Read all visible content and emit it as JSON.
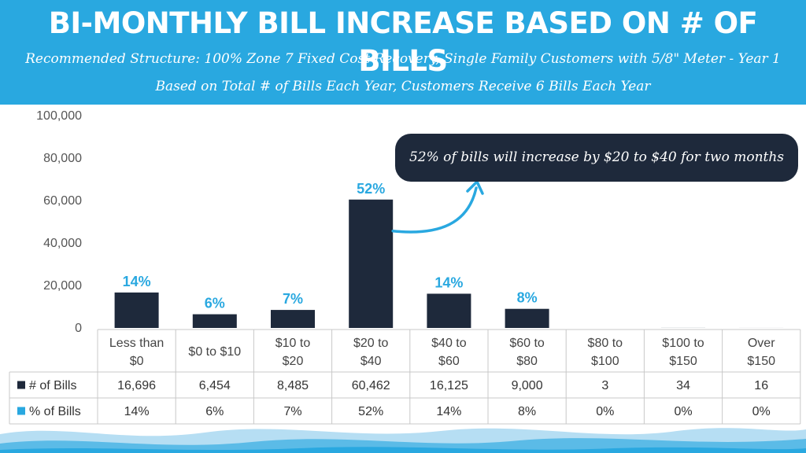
{
  "header": {
    "title": "BI-MONTHLY BILL INCREASE BASED ON # OF BILLS",
    "subtitle1": "Recommended Structure: 100% Zone 7 Fixed Cost Recovery, Single Family Customers with 5/8\" Meter - Year 1",
    "subtitle2": "Based on Total # of Bills Each Year, Customers Receive 6 Bills Each Year"
  },
  "callout": {
    "text": "52% of bills will increase by $20 to $40 for two months"
  },
  "colors": {
    "header": "#29a8e0",
    "bar": "#1e293b",
    "pct_label": "#29a8e0",
    "callout_bg": "#1e293b"
  },
  "chart_data": {
    "type": "bar",
    "ylim": [
      0,
      100000
    ],
    "yticks": [
      "100,000",
      "80,000",
      "60,000",
      "40,000",
      "20,000",
      "0"
    ],
    "categories": [
      [
        "Less than",
        "$0"
      ],
      [
        "$0 to $10"
      ],
      [
        "$10 to",
        "$20"
      ],
      [
        "$20 to",
        "$40"
      ],
      [
        "$40 to",
        "$60"
      ],
      [
        "$60 to",
        "$80"
      ],
      [
        "$80 to",
        "$100"
      ],
      [
        "$100 to",
        "$150"
      ],
      [
        "Over",
        "$150"
      ]
    ],
    "series": [
      {
        "name": "# of Bills",
        "values": [
          16696,
          6454,
          8485,
          60462,
          16125,
          9000,
          3,
          34,
          16
        ],
        "labels": [
          "16,696",
          "6,454",
          "8,485",
          "60,462",
          "16,125",
          "9,000",
          "3",
          "34",
          "16"
        ]
      },
      {
        "name": "% of Bills",
        "labels": [
          "14%",
          "6%",
          "7%",
          "52%",
          "14%",
          "8%",
          "0%",
          "0%",
          "0%"
        ]
      }
    ],
    "bar_labels": [
      "14%",
      "6%",
      "7%",
      "52%",
      "14%",
      "8%",
      "",
      "",
      ""
    ],
    "legend_colors": [
      "#1e293b",
      "#29a8e0"
    ]
  }
}
